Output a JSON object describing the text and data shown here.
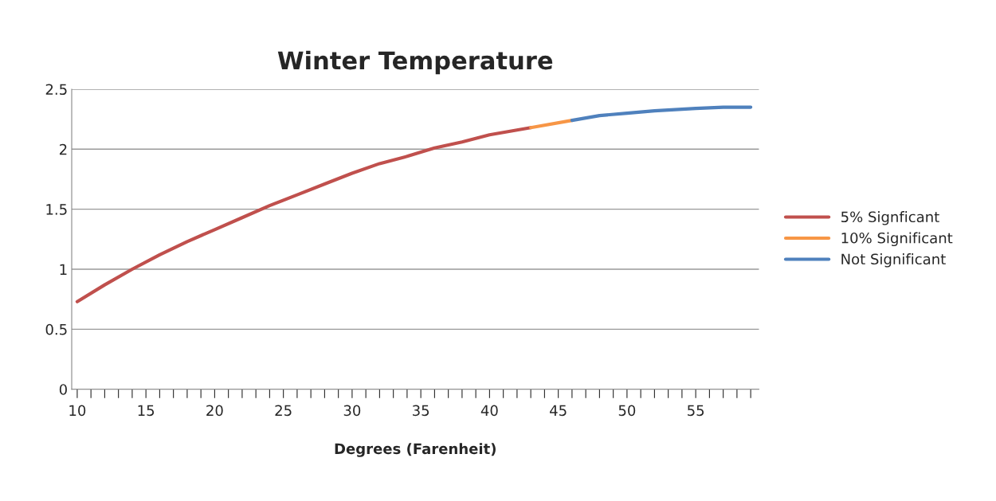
{
  "chart_data": {
    "type": "line",
    "title": "Winter Temperature",
    "xlabel": "Degrees (Farenheit)",
    "series": [
      {
        "name": "5% Signficant",
        "color": "#c0504d",
        "x": [
          10,
          12,
          14,
          16,
          18,
          20,
          22,
          24,
          26,
          28,
          30,
          32,
          34,
          36,
          38,
          40,
          43
        ],
        "values": [
          0.73,
          0.87,
          1.0,
          1.12,
          1.23,
          1.33,
          1.43,
          1.53,
          1.62,
          1.71,
          1.8,
          1.88,
          1.94,
          2.01,
          2.06,
          2.12,
          2.18
        ]
      },
      {
        "name": "10% Significant",
        "color": "#f79646",
        "x": [
          43,
          46
        ],
        "values": [
          2.18,
          2.24
        ]
      },
      {
        "name": "Not Significant",
        "color": "#4f81bd",
        "x": [
          46,
          48,
          50,
          52,
          55,
          57,
          59
        ],
        "values": [
          2.24,
          2.28,
          2.3,
          2.32,
          2.34,
          2.35,
          2.35
        ]
      }
    ],
    "xlim": [
      9.6,
      59.6
    ],
    "xticks": [
      10,
      {
        "value": 11,
        "label": null
      },
      {
        "value": 12,
        "label": null
      },
      {
        "value": 13,
        "label": null
      },
      {
        "value": 14,
        "label": null
      },
      15,
      {
        "value": 16,
        "label": null
      },
      {
        "value": 17,
        "label": null
      },
      {
        "value": 18,
        "label": null
      },
      {
        "value": 19,
        "label": null
      },
      20,
      {
        "value": 21,
        "label": null
      },
      {
        "value": 22,
        "label": null
      },
      {
        "value": 23,
        "label": null
      },
      {
        "value": 24,
        "label": null
      },
      25,
      {
        "value": 26,
        "label": null
      },
      {
        "value": 27,
        "label": null
      },
      {
        "value": 28,
        "label": null
      },
      {
        "value": 29,
        "label": null
      },
      30,
      {
        "value": 31,
        "label": null
      },
      {
        "value": 32,
        "label": null
      },
      {
        "value": 33,
        "label": null
      },
      {
        "value": 34,
        "label": null
      },
      35,
      {
        "value": 36,
        "label": null
      },
      {
        "value": 37,
        "label": null
      },
      {
        "value": 38,
        "label": null
      },
      {
        "value": 39,
        "label": null
      },
      40,
      {
        "value": 41,
        "label": null
      },
      {
        "value": 42,
        "label": null
      },
      {
        "value": 43,
        "label": null
      },
      {
        "value": 44,
        "label": null
      },
      45,
      {
        "value": 46,
        "label": null
      },
      {
        "value": 47,
        "label": null
      },
      {
        "value": 48,
        "label": null
      },
      {
        "value": 49,
        "label": null
      },
      50,
      {
        "value": 51,
        "label": null
      },
      {
        "value": 52,
        "label": null
      },
      {
        "value": 53,
        "label": null
      },
      {
        "value": 54,
        "label": null
      },
      55,
      {
        "value": 56,
        "label": null
      },
      {
        "value": 57,
        "label": null
      },
      {
        "value": 58,
        "label": null
      },
      {
        "value": 59,
        "label": null
      }
    ],
    "ylim": [
      0,
      2.5
    ],
    "yticks": [
      0,
      0.5,
      1,
      1.5,
      2,
      2.5
    ],
    "grid": "y",
    "legend": "right",
    "marker": "none",
    "line_style": "solid"
  }
}
